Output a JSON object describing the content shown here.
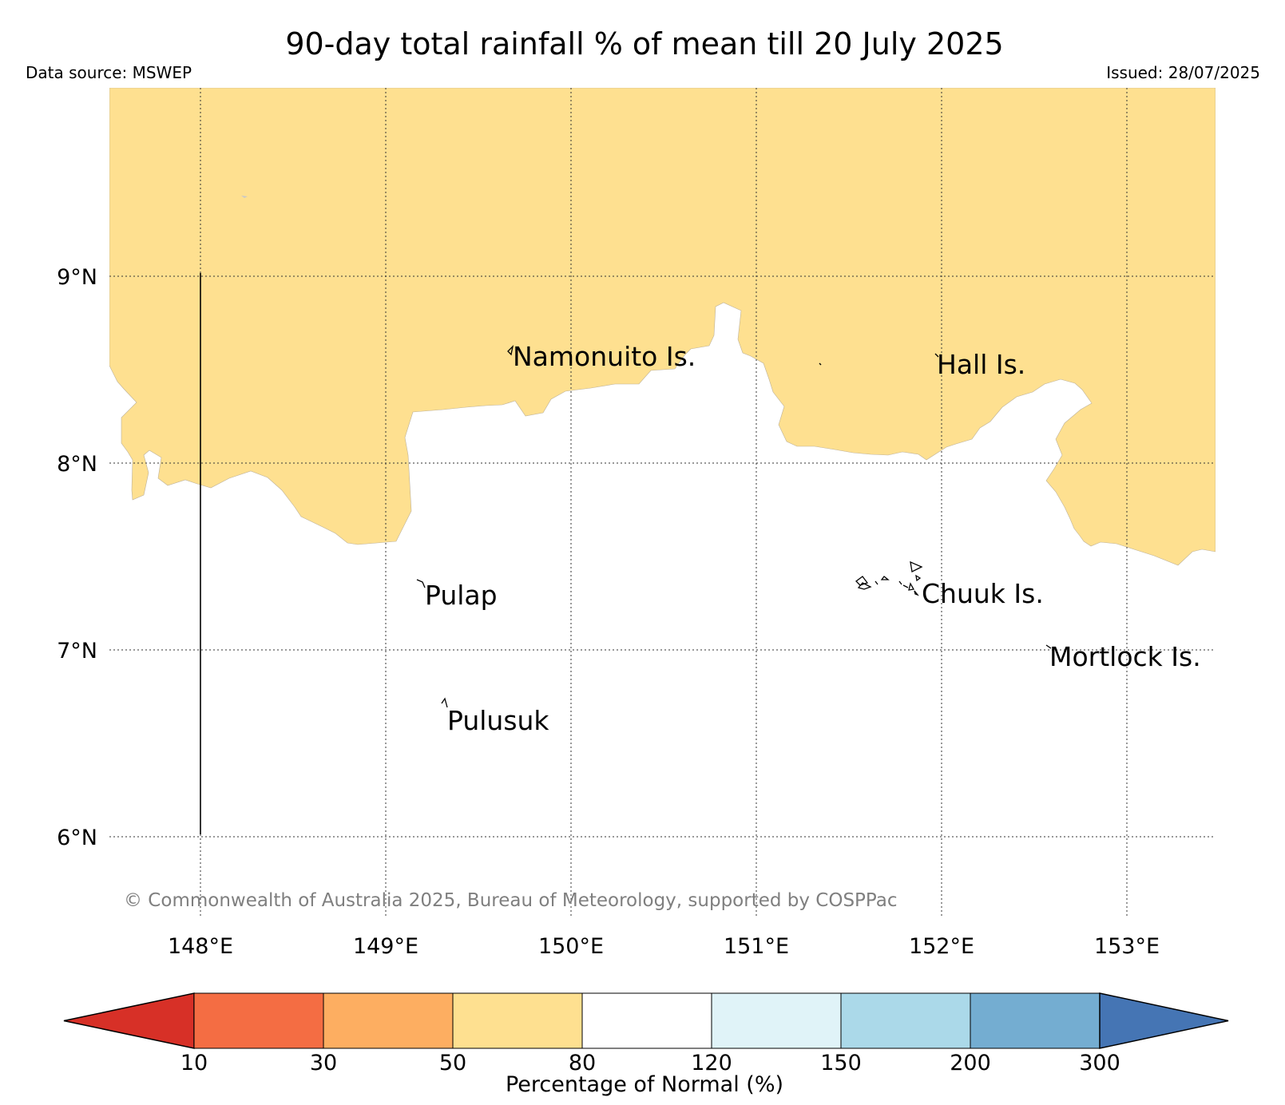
{
  "title": "90-day total rainfall % of mean till 20 July 2025",
  "data_source": "Data source: MSWEP",
  "issued": "Issued: 28/07/2025",
  "copyright": "© Commonwealth of Australia 2025, Bureau of Meteorology, supported by COSPPac",
  "map": {
    "lon_range": [
      147.5,
      153.5
    ],
    "lat_range": [
      5.5,
      10.0
    ],
    "lon_ticks": [
      {
        "value": 148,
        "label": "148°E"
      },
      {
        "value": 149,
        "label": "149°E"
      },
      {
        "value": 150,
        "label": "150°E"
      },
      {
        "value": 151,
        "label": "151°E"
      },
      {
        "value": 152,
        "label": "152°E"
      },
      {
        "value": 153,
        "label": "153°E"
      }
    ],
    "lat_ticks": [
      {
        "value": 9,
        "label": "9°N"
      },
      {
        "value": 8,
        "label": "8°N"
      },
      {
        "value": 7,
        "label": "7°N"
      },
      {
        "value": 6,
        "label": "6°N"
      }
    ],
    "grid": true,
    "places": [
      {
        "name": "Namonuito Is.",
        "lon": 149.68,
        "lat": 8.57
      },
      {
        "name": "Hall Is.",
        "lon": 151.98,
        "lat": 8.52
      },
      {
        "name": "Pulap",
        "lon": 149.2,
        "lat": 7.3
      },
      {
        "name": "Chuuk Is.",
        "lon": 151.88,
        "lat": 7.3
      },
      {
        "name": "Mortlock Is.",
        "lon": 152.6,
        "lat": 6.96
      },
      {
        "name": "Pulusuk",
        "lon": 149.32,
        "lat": 6.63
      }
    ],
    "rainfall_region_class": "50-80",
    "background_class": "80-120"
  },
  "colorbar": {
    "label": "Percentage of Normal (%)",
    "ticks": [
      "10",
      "30",
      "50",
      "80",
      "120",
      "150",
      "200",
      "300"
    ],
    "under_color": "#d73027",
    "over_color": "#4575b4",
    "colors": [
      "#f46d43",
      "#fdae61",
      "#fee090",
      "#ffffff",
      "#e0f3f8",
      "#abd9e9",
      "#74add1"
    ]
  }
}
